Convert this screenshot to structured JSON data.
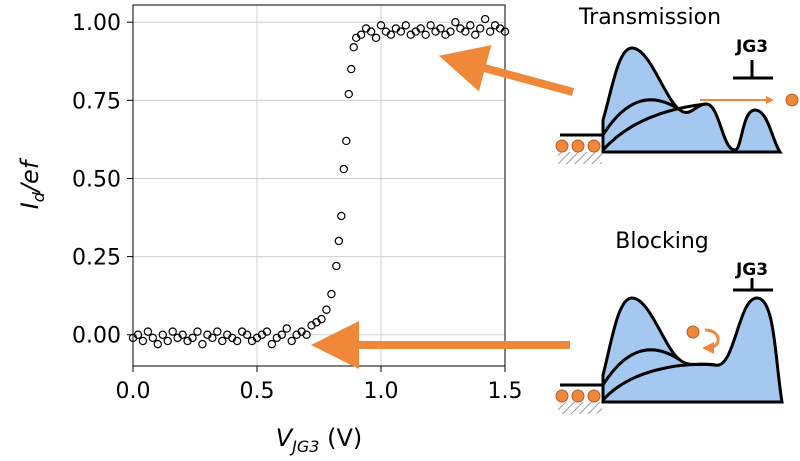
{
  "chart_data": {
    "type": "scatter",
    "xlabel": {
      "main": "V",
      "sub": "JG3",
      "rest": " (V)"
    },
    "ylabel": {
      "main": "I",
      "sub": "d",
      "rest": "/ef"
    },
    "xlim": [
      0,
      1.5
    ],
    "ylim": [
      -0.1,
      1.055
    ],
    "xticks": [
      {
        "value": 0,
        "label": "0.0"
      },
      {
        "value": 0.5,
        "label": "0.5"
      },
      {
        "value": 1,
        "label": "1.0"
      },
      {
        "value": 1.5,
        "label": "1.5"
      }
    ],
    "yticks": [
      {
        "value": 0,
        "label": "0.00"
      },
      {
        "value": 0.25,
        "label": "0.25"
      },
      {
        "value": 0.5,
        "label": "0.50"
      },
      {
        "value": 0.75,
        "label": "0.75"
      },
      {
        "value": 1,
        "label": "1.00"
      }
    ],
    "grid": true,
    "color": "#000000",
    "x": [
      0.0,
      0.02,
      0.04,
      0.06,
      0.08,
      0.1,
      0.12,
      0.14,
      0.16,
      0.18,
      0.2,
      0.22,
      0.24,
      0.26,
      0.28,
      0.3,
      0.32,
      0.34,
      0.36,
      0.38,
      0.4,
      0.42,
      0.44,
      0.46,
      0.48,
      0.5,
      0.52,
      0.54,
      0.56,
      0.58,
      0.6,
      0.62,
      0.64,
      0.66,
      0.68,
      0.7,
      0.72,
      0.74,
      0.76,
      0.78,
      0.8,
      0.82,
      0.83,
      0.84,
      0.85,
      0.86,
      0.87,
      0.88,
      0.89,
      0.9,
      0.92,
      0.94,
      0.96,
      0.98,
      1.0,
      1.02,
      1.04,
      1.06,
      1.08,
      1.1,
      1.12,
      1.14,
      1.16,
      1.18,
      1.2,
      1.22,
      1.24,
      1.26,
      1.28,
      1.3,
      1.32,
      1.34,
      1.36,
      1.38,
      1.4,
      1.42,
      1.44,
      1.46,
      1.48,
      1.5
    ],
    "values": [
      -0.01,
      0.0,
      -0.02,
      0.01,
      -0.01,
      -0.03,
      0.0,
      -0.02,
      0.01,
      -0.01,
      0.0,
      -0.02,
      -0.01,
      0.01,
      -0.03,
      0.0,
      -0.01,
      0.01,
      -0.02,
      0.0,
      -0.01,
      -0.02,
      0.01,
      0.0,
      -0.02,
      -0.01,
      0.0,
      0.01,
      -0.03,
      -0.01,
      0.0,
      0.02,
      -0.02,
      0.0,
      0.01,
      0.0,
      0.03,
      0.04,
      0.05,
      0.08,
      0.13,
      0.22,
      0.3,
      0.38,
      0.53,
      0.62,
      0.77,
      0.85,
      0.92,
      0.95,
      0.96,
      0.98,
      0.97,
      0.95,
      0.99,
      0.97,
      0.96,
      0.98,
      0.97,
      0.99,
      0.96,
      0.97,
      0.98,
      0.96,
      0.99,
      0.97,
      0.98,
      0.96,
      0.97,
      1.0,
      0.98,
      0.97,
      0.99,
      0.96,
      0.98,
      1.01,
      0.97,
      0.99,
      0.98,
      0.97
    ],
    "annotations": {
      "transmission": "Transmission",
      "blocking": "Blocking",
      "gate_top": "JG3",
      "gate_bottom": "JG3"
    }
  }
}
